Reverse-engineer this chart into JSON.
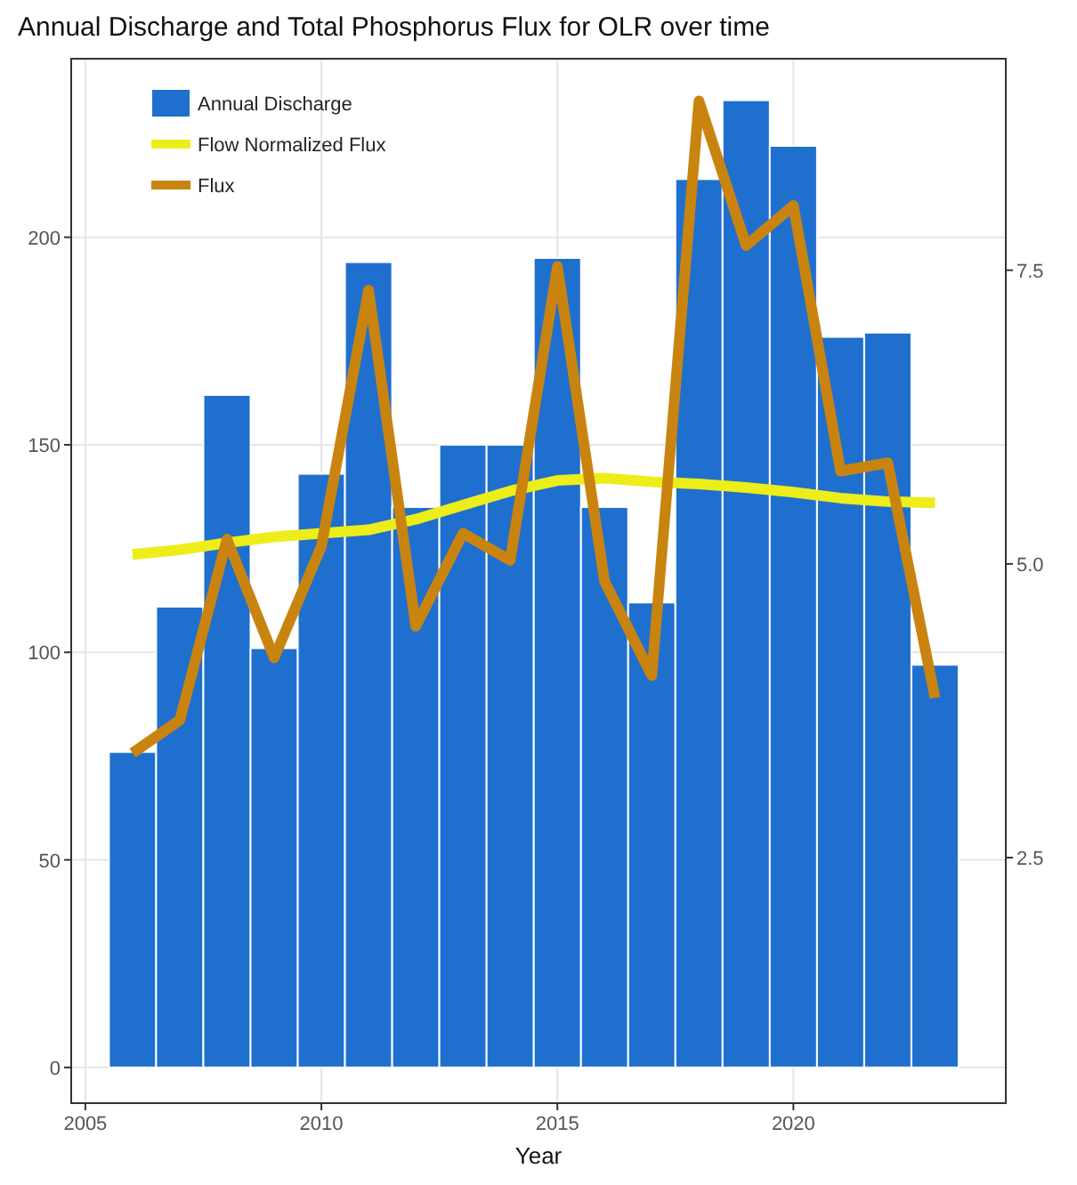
{
  "chart_data": {
    "type": "bar",
    "title": "Annual Discharge and Total Phosphorus Flux for OLR over time",
    "xlabel": "Year",
    "x": [
      2006,
      2007,
      2008,
      2009,
      2010,
      2011,
      2012,
      2013,
      2014,
      2015,
      2016,
      2017,
      2018,
      2019,
      2020,
      2021,
      2022,
      2023
    ],
    "series": [
      {
        "name": "Annual Discharge",
        "color": "#1f6fcf",
        "values": [
          76,
          111,
          162,
          101,
          143,
          194,
          135,
          150,
          150,
          195,
          135,
          112,
          214,
          233,
          222,
          176,
          177,
          97
        ]
      },
      {
        "name": "Flow Normalized Flux",
        "type": "line",
        "axis": "y2",
        "color": "#eded1a",
        "values": [
          5.08,
          5.12,
          5.18,
          5.23,
          5.26,
          5.29,
          5.38,
          5.5,
          5.62,
          5.71,
          5.73,
          5.7,
          5.68,
          5.65,
          5.61,
          5.56,
          5.53,
          5.52
        ]
      },
      {
        "name": "Flux",
        "type": "line",
        "axis": "y2",
        "color": "#c98410",
        "values": [
          3.39,
          3.67,
          5.21,
          4.2,
          5.15,
          7.33,
          4.47,
          5.26,
          5.03,
          7.53,
          4.85,
          4.05,
          8.94,
          7.71,
          8.05,
          5.79,
          5.86,
          3.86
        ]
      }
    ],
    "xlim": [
      2004.7,
      2024.5
    ],
    "xticks": [
      2005,
      2010,
      2015,
      2020
    ],
    "ylim": [
      -8.6,
      243
    ],
    "yticks": [
      0,
      50,
      100,
      150,
      200
    ],
    "y2lim": [
      0.41,
      9.3
    ],
    "y2ticks": [
      2.5,
      {
        "value": 5,
        "label": "5.0"
      },
      7.5
    ],
    "grid": true,
    "legend": "top left"
  }
}
